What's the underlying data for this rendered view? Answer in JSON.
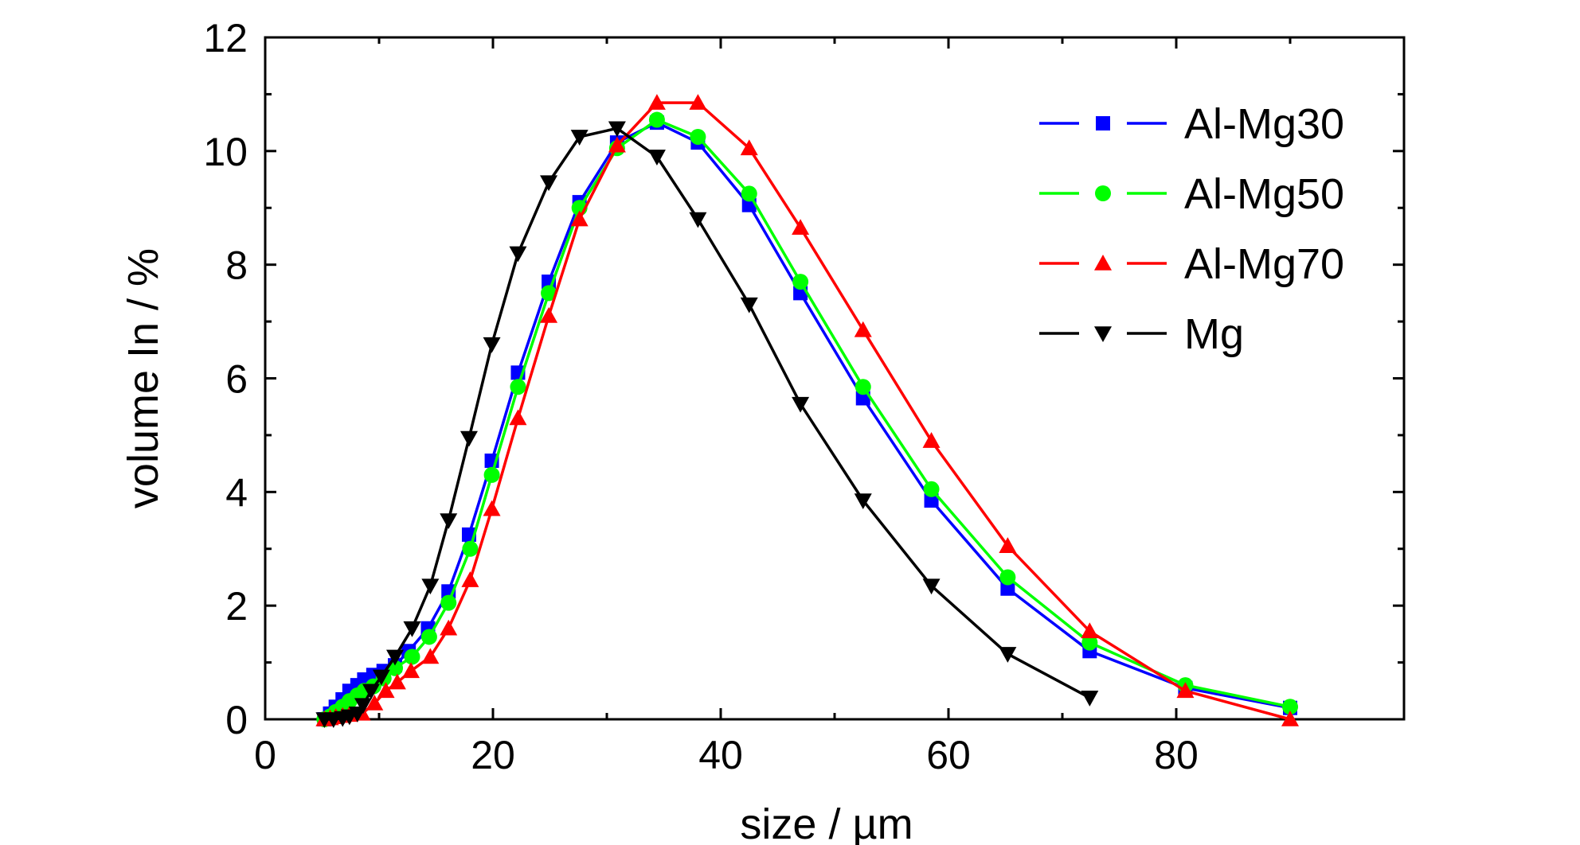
{
  "chart_data": {
    "type": "line",
    "xlabel": "size / µm",
    "ylabel": "volume In / %",
    "xlim": [
      0,
      100
    ],
    "ylim": [
      0,
      12
    ],
    "xticks": [
      "0",
      "20",
      "40",
      "60",
      "80"
    ],
    "yticks": [
      "0",
      "2",
      "4",
      "6",
      "8",
      "10",
      "12"
    ],
    "grid": false,
    "legend_position": "top-right",
    "series": [
      {
        "name": "Al-Mg30",
        "color": "#0000ff",
        "marker": "square",
        "points": [
          [
            5.2,
            0.0
          ],
          [
            5.7,
            0.1
          ],
          [
            6.2,
            0.22
          ],
          [
            6.8,
            0.35
          ],
          [
            7.4,
            0.5
          ],
          [
            8.1,
            0.6
          ],
          [
            8.7,
            0.7
          ],
          [
            9.5,
            0.78
          ],
          [
            10.4,
            0.85
          ],
          [
            11.4,
            0.95
          ],
          [
            12.6,
            1.2
          ],
          [
            14.3,
            1.6
          ],
          [
            16.1,
            2.25
          ],
          [
            17.9,
            3.25
          ],
          [
            19.9,
            4.55
          ],
          [
            22.2,
            6.1
          ],
          [
            24.9,
            7.7
          ],
          [
            27.6,
            9.1
          ],
          [
            30.9,
            10.15
          ],
          [
            34.4,
            10.5
          ],
          [
            38.0,
            10.15
          ],
          [
            42.5,
            9.05
          ],
          [
            47.0,
            7.5
          ],
          [
            52.5,
            5.65
          ],
          [
            58.5,
            3.85
          ],
          [
            65.2,
            2.3
          ],
          [
            72.4,
            1.2
          ],
          [
            80.8,
            0.55
          ],
          [
            90.0,
            0.2
          ]
        ]
      },
      {
        "name": "Al-Mg50",
        "color": "#00ff00",
        "marker": "circle",
        "points": [
          [
            5.2,
            0.0
          ],
          [
            5.7,
            0.05
          ],
          [
            6.2,
            0.13
          ],
          [
            6.8,
            0.22
          ],
          [
            7.4,
            0.32
          ],
          [
            8.1,
            0.42
          ],
          [
            8.7,
            0.5
          ],
          [
            9.5,
            0.58
          ],
          [
            10.4,
            0.72
          ],
          [
            11.4,
            0.9
          ],
          [
            12.9,
            1.1
          ],
          [
            14.4,
            1.45
          ],
          [
            16.1,
            2.05
          ],
          [
            18.0,
            3.0
          ],
          [
            19.9,
            4.3
          ],
          [
            22.2,
            5.85
          ],
          [
            24.9,
            7.5
          ],
          [
            27.6,
            9.0
          ],
          [
            30.9,
            10.05
          ],
          [
            34.4,
            10.55
          ],
          [
            38.0,
            10.25
          ],
          [
            42.5,
            9.25
          ],
          [
            47.0,
            7.7
          ],
          [
            52.5,
            5.85
          ],
          [
            58.5,
            4.05
          ],
          [
            65.2,
            2.5
          ],
          [
            72.4,
            1.35
          ],
          [
            80.8,
            0.6
          ],
          [
            90.0,
            0.22
          ]
        ]
      },
      {
        "name": "Al-Mg70",
        "color": "#ff0000",
        "marker": "triangle-up",
        "points": [
          [
            5.2,
            0.0
          ],
          [
            5.7,
            0.02
          ],
          [
            6.2,
            0.04
          ],
          [
            6.8,
            0.06
          ],
          [
            7.4,
            0.08
          ],
          [
            8.5,
            0.1
          ],
          [
            9.6,
            0.28
          ],
          [
            10.6,
            0.5
          ],
          [
            11.6,
            0.65
          ],
          [
            12.8,
            0.85
          ],
          [
            14.5,
            1.1
          ],
          [
            16.1,
            1.6
          ],
          [
            18.0,
            2.45
          ],
          [
            19.9,
            3.7
          ],
          [
            22.2,
            5.3
          ],
          [
            24.9,
            7.1
          ],
          [
            27.6,
            8.8
          ],
          [
            30.9,
            10.1
          ],
          [
            34.4,
            10.85
          ],
          [
            38.0,
            10.85
          ],
          [
            42.5,
            10.05
          ],
          [
            47.0,
            8.65
          ],
          [
            52.5,
            6.85
          ],
          [
            58.5,
            4.9
          ],
          [
            65.2,
            3.05
          ],
          [
            72.4,
            1.55
          ],
          [
            80.8,
            0.5
          ],
          [
            90.0,
            0.0
          ]
        ]
      },
      {
        "name": "Mg",
        "color": "#000000",
        "marker": "triangle-down",
        "points": [
          [
            5.2,
            0.0
          ],
          [
            6.0,
            0.0
          ],
          [
            6.8,
            0.02
          ],
          [
            7.4,
            0.05
          ],
          [
            8.1,
            0.1
          ],
          [
            8.6,
            0.25
          ],
          [
            9.3,
            0.5
          ],
          [
            10.2,
            0.75
          ],
          [
            11.4,
            1.1
          ],
          [
            12.9,
            1.6
          ],
          [
            14.5,
            2.35
          ],
          [
            16.1,
            3.5
          ],
          [
            17.9,
            4.95
          ],
          [
            19.9,
            6.6
          ],
          [
            22.2,
            8.2
          ],
          [
            24.9,
            9.45
          ],
          [
            27.6,
            10.25
          ],
          [
            30.9,
            10.4
          ],
          [
            34.4,
            9.9
          ],
          [
            38.0,
            8.8
          ],
          [
            42.5,
            7.3
          ],
          [
            47.0,
            5.55
          ],
          [
            52.5,
            3.85
          ],
          [
            58.5,
            2.35
          ],
          [
            65.2,
            1.15
          ],
          [
            72.4,
            0.38
          ]
        ]
      }
    ]
  }
}
